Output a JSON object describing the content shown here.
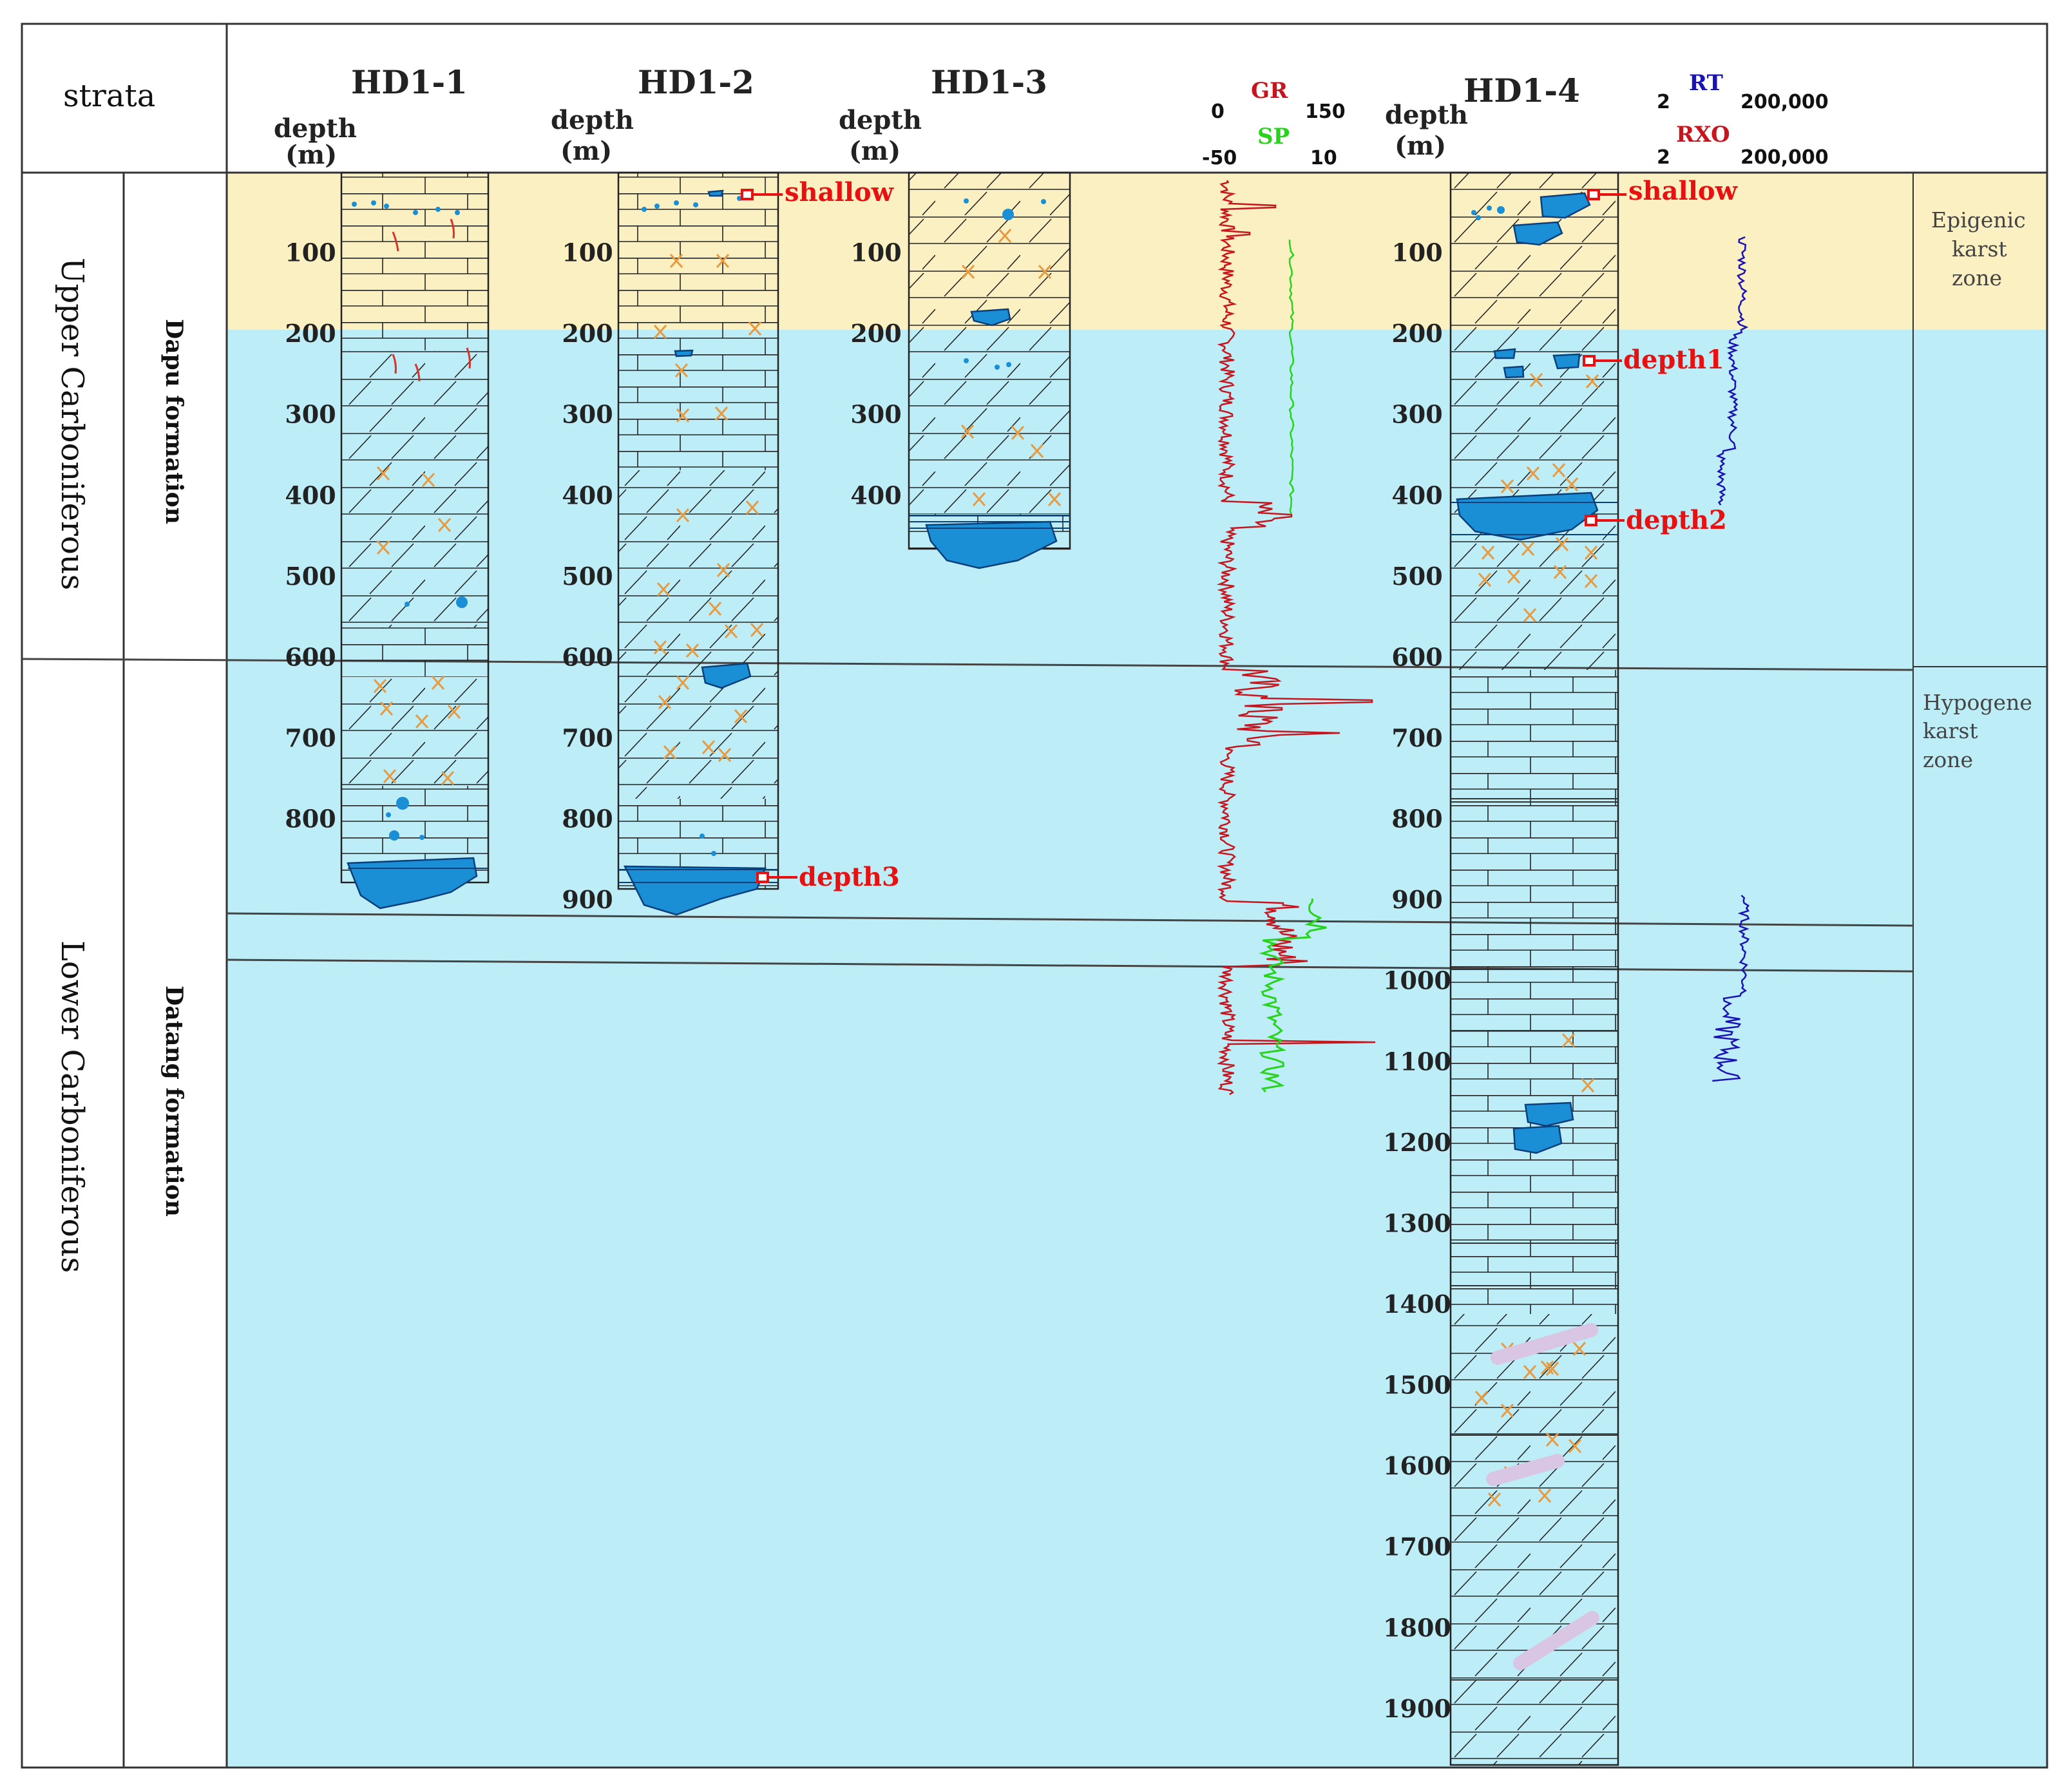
{
  "header": {
    "strata_label": "strata",
    "depth_label": "depth",
    "depth_unit": "(m)"
  },
  "colors": {
    "epigenic_fill": "#fbf0c2",
    "hypogene_fill": "#bdeef8",
    "cave_fill": "#1a8fd6",
    "cave_stroke": "#0b3f7a",
    "gr_curve": "#c8141c",
    "sp_curve": "#27d41b",
    "rt_curve": "#1a12b5",
    "annotation": "#e81010",
    "calcite": "#e89a40",
    "vein": "#d9c6e4"
  },
  "strata": {
    "upper_system": "Upper Carboniferous",
    "lower_system": "Lower Carboniferous",
    "upper_formation": "Dapu formation",
    "lower_formation": "Datang formation"
  },
  "zones": {
    "epigenic": [
      "Epigenic",
      "karst",
      "zone"
    ],
    "hypogene": [
      "Hypogene",
      "karst",
      "zone"
    ]
  },
  "wells": [
    {
      "name": "HD1-1",
      "ticks": [
        "100",
        "200",
        "300",
        "400",
        "500",
        "600",
        "700",
        "800"
      ]
    },
    {
      "name": "HD1-2",
      "ticks": [
        "100",
        "200",
        "300",
        "400",
        "500",
        "600",
        "700",
        "800",
        "900"
      ]
    },
    {
      "name": "HD1-3",
      "ticks": [
        "100",
        "200",
        "300",
        "400"
      ]
    },
    {
      "name": "HD1-4",
      "ticks": [
        "100",
        "200",
        "300",
        "400",
        "500",
        "600",
        "700",
        "800",
        "900",
        "1000",
        "1100",
        "1200",
        "1300",
        "1400",
        "1500",
        "1600",
        "1700",
        "1800",
        "1900"
      ]
    }
  ],
  "logs": {
    "gr": {
      "name": "GR",
      "min": "0",
      "max": "150"
    },
    "sp": {
      "name": "SP",
      "min": "-50",
      "max": "10"
    },
    "rt": {
      "name": "RT",
      "min": "2",
      "max": "200,000"
    },
    "rxo": {
      "name": "RXO",
      "min": "2",
      "max": "200,000"
    }
  },
  "annotations": {
    "shallow_hd12": "shallow",
    "shallow_hd14": "shallow",
    "depth1": "depth1",
    "depth2": "depth2",
    "depth3": "depth3"
  }
}
